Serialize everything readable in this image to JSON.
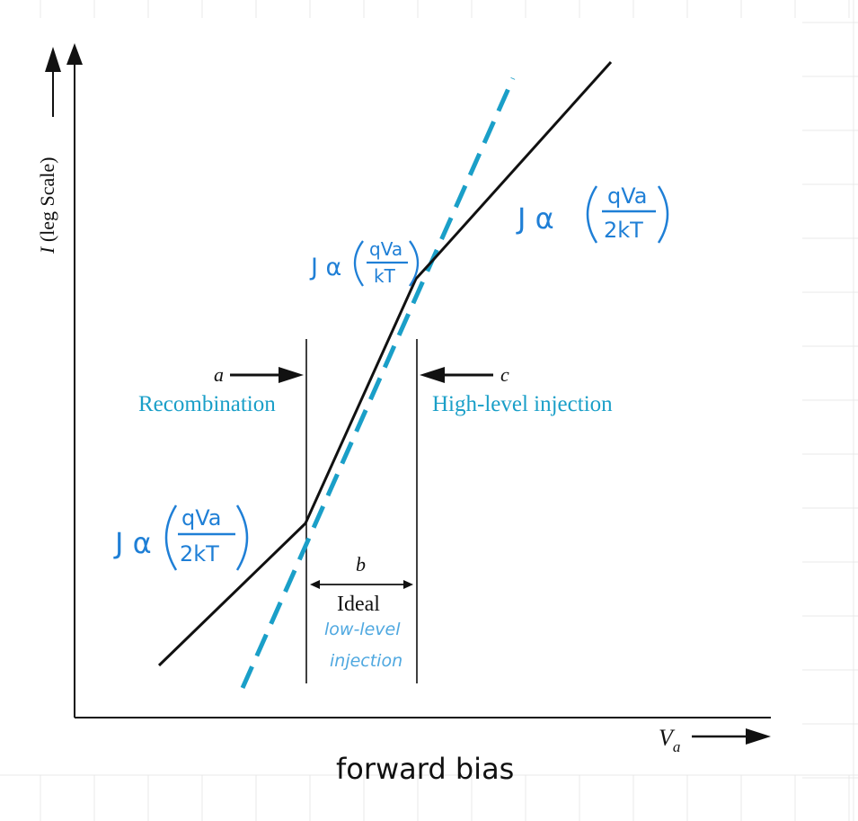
{
  "colors": {
    "ink": "#111111",
    "accent": "#1a9fc8",
    "grid": "#e6e6e6"
  },
  "axes": {
    "y_label_italic": "I",
    "y_label_rest": " (leg Scale)",
    "x_label_main": "V",
    "x_label_sub": "a"
  },
  "regions": {
    "a_letter": "a",
    "a_name": "Recombination",
    "b_letter": "b",
    "b_name": "Ideal",
    "c_letter": "c",
    "c_name": "High-level injection"
  },
  "handwriting": {
    "low_level_line1": "low-level",
    "low_level_line2": "injection",
    "forward_bias": "forward bias",
    "eq_upper_right": {
      "lhs": "J α",
      "num": "qVa",
      "den": "2kT"
    },
    "eq_middle": {
      "lhs": "J α",
      "num": "qVa",
      "den": "kT"
    },
    "eq_lower_left": {
      "lhs": "J α",
      "num": "qVa",
      "den": "2kT"
    }
  }
}
